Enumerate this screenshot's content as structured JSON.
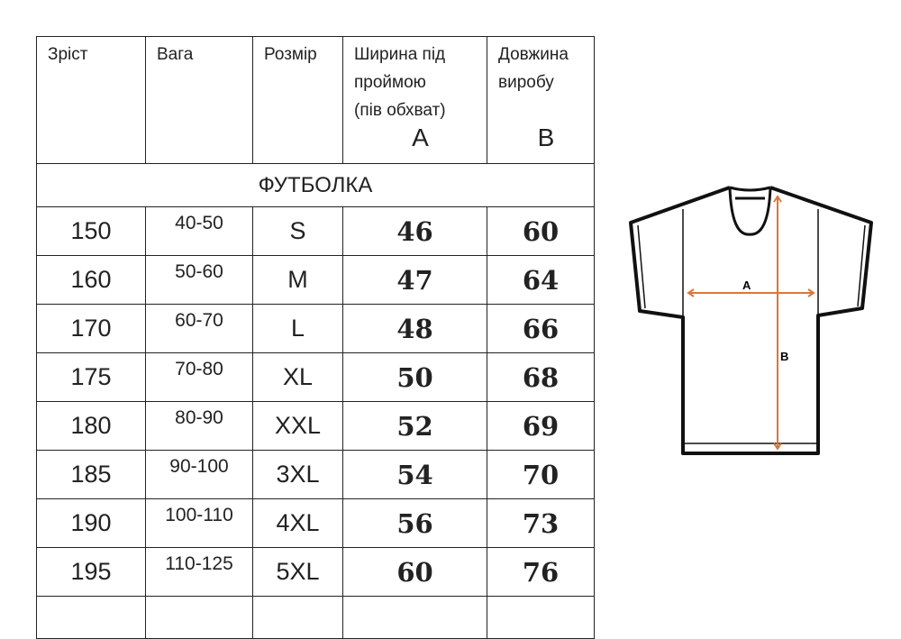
{
  "headers": [
    {
      "lines": [
        "Зріст"
      ],
      "letter": ""
    },
    {
      "lines": [
        "Вага"
      ],
      "letter": ""
    },
    {
      "lines": [
        "Розмір"
      ],
      "letter": ""
    },
    {
      "lines": [
        "Ширина під",
        "проймою",
        "(пів обхват)"
      ],
      "letter": "A"
    },
    {
      "lines": [
        "Довжина",
        "виробу"
      ],
      "letter": "B"
    }
  ],
  "section": "ФУТБОЛКА",
  "rows": [
    [
      "150",
      "40-50",
      "S",
      "46",
      "60"
    ],
    [
      "160",
      "50-60",
      "M",
      "47",
      "64"
    ],
    [
      "170",
      "60-70",
      "L",
      "48",
      "66"
    ],
    [
      "175",
      "70-80",
      "XL",
      "50",
      "68"
    ],
    [
      "180",
      "80-90",
      "XXL",
      "52",
      "69"
    ],
    [
      "185",
      "90-100",
      "3XL",
      "54",
      "70"
    ],
    [
      "190",
      "100-110",
      "4XL",
      "56",
      "73"
    ],
    [
      "195",
      "110-125",
      "5XL",
      "60",
      "76"
    ]
  ],
  "diagram": {
    "label_a": "A",
    "label_b": "B",
    "arrow_color": "#d9773a"
  }
}
